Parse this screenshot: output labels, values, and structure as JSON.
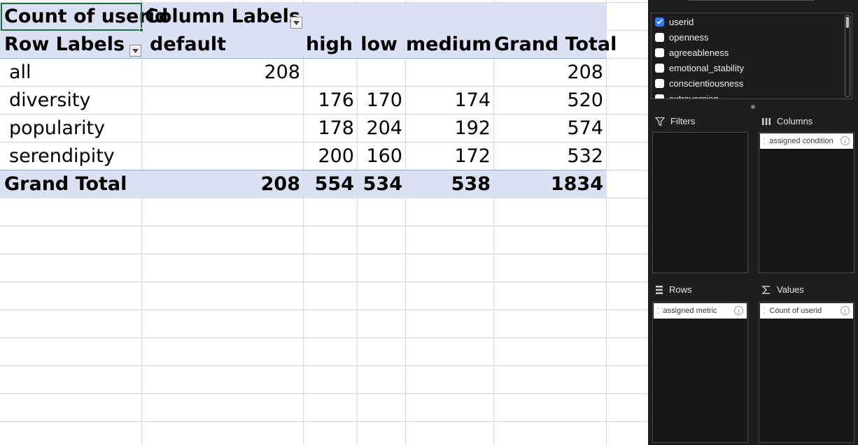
{
  "pivot": {
    "title": "Count of userid",
    "column_labels": "Column Labels",
    "row_labels": "Row Labels",
    "columns": [
      "default",
      "high",
      "low",
      "medium",
      "Grand Total"
    ],
    "rows": [
      {
        "label": "all",
        "default": "208",
        "high": "",
        "low": "",
        "medium": "",
        "grand_total": "208"
      },
      {
        "label": "diversity",
        "default": "",
        "high": "176",
        "low": "170",
        "medium": "174",
        "grand_total": "520"
      },
      {
        "label": "popularity",
        "default": "",
        "high": "178",
        "low": "204",
        "medium": "192",
        "grand_total": "574"
      },
      {
        "label": "serendipity",
        "default": "",
        "high": "200",
        "low": "160",
        "medium": "172",
        "grand_total": "532"
      }
    ],
    "grand_total": {
      "label": "Grand Total",
      "default": "208",
      "high": "554",
      "low": "534",
      "medium": "538",
      "grand_total": "1834"
    }
  },
  "panel": {
    "fields": [
      {
        "label": "userid",
        "checked": true
      },
      {
        "label": "openness",
        "checked": false
      },
      {
        "label": "agreeableness",
        "checked": false
      },
      {
        "label": "emotional_stability",
        "checked": false
      },
      {
        "label": "conscientiousness",
        "checked": false
      },
      {
        "label": "extraversion",
        "checked": false
      }
    ],
    "filters_title": "Filters",
    "columns_title": "Columns",
    "rows_title": "Rows",
    "values_title": "Values",
    "columns_chip": "assigned condition",
    "rows_chip": "assigned metric",
    "values_chip": "Count of userid",
    "info_glyph": "i",
    "grip_glyph": "⁚"
  }
}
